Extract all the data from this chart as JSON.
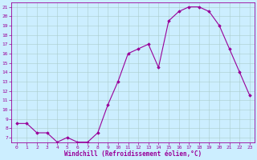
{
  "x": [
    0,
    1,
    2,
    3,
    4,
    5,
    6,
    7,
    8,
    9,
    10,
    11,
    12,
    13,
    14,
    15,
    16,
    17,
    18,
    19,
    20,
    21,
    22,
    23
  ],
  "y": [
    8.5,
    8.5,
    7.5,
    7.5,
    6.5,
    7.0,
    6.5,
    6.5,
    7.5,
    10.5,
    13.0,
    16.0,
    16.5,
    17.0,
    14.5,
    19.5,
    20.5,
    21.0,
    21.0,
    20.5,
    19.0,
    16.5,
    14.0,
    11.5
  ],
  "line_color": "#990099",
  "marker": "D",
  "marker_size": 1.8,
  "bg_color": "#cceeff",
  "grid_color": "#aacccc",
  "xlabel": "Windchill (Refroidissement éolien,°C)",
  "xlabel_color": "#990099",
  "tick_color": "#990099",
  "ylim": [
    6.5,
    21.5
  ],
  "xlim": [
    -0.5,
    23.5
  ],
  "yticks": [
    7,
    8,
    9,
    10,
    11,
    12,
    13,
    14,
    15,
    16,
    17,
    18,
    19,
    20,
    21
  ],
  "xticks": [
    0,
    1,
    2,
    3,
    4,
    5,
    6,
    7,
    8,
    9,
    10,
    11,
    12,
    13,
    14,
    15,
    16,
    17,
    18,
    19,
    20,
    21,
    22,
    23
  ],
  "tick_fontsize": 4.5,
  "xlabel_fontsize": 5.5
}
